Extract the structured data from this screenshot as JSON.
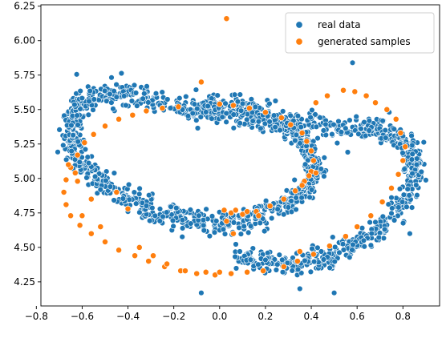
{
  "chart_data": {
    "type": "scatter",
    "title": "",
    "xlabel": "",
    "ylabel": "",
    "xlim": [
      -0.78,
      0.96
    ],
    "ylim": [
      4.075,
      6.26
    ],
    "x_ticks": [
      "−0.8",
      "−0.6",
      "−0.4",
      "−0.2",
      "0.0",
      "0.2",
      "0.4",
      "0.6",
      "0.8"
    ],
    "x_tick_values": [
      -0.8,
      -0.6,
      -0.4,
      -0.2,
      0.0,
      0.2,
      0.4,
      0.6,
      0.8
    ],
    "y_ticks": [
      "4.25",
      "4.50",
      "4.75",
      "5.00",
      "5.25",
      "5.50",
      "5.75",
      "6.00",
      "6.25"
    ],
    "y_tick_values": [
      4.25,
      4.5,
      4.75,
      5.0,
      5.25,
      5.5,
      5.75,
      6.0,
      6.25
    ],
    "grid": false,
    "legend_position": "top-right",
    "series": [
      {
        "name": "real data",
        "color": "#1f77b4",
        "shape": "double spiral",
        "approx_point_count": 2000,
        "x": [
          -0.12,
          -0.05,
          0.02,
          0.09,
          0.16,
          0.22,
          0.28,
          0.33,
          0.37,
          0.4,
          0.42,
          0.41,
          0.38,
          0.34,
          0.29,
          0.23,
          0.16,
          0.09,
          0.02,
          -0.05,
          -0.13,
          -0.21,
          -0.29,
          -0.37,
          -0.44,
          -0.5,
          -0.56,
          -0.6,
          -0.63,
          -0.65,
          -0.65,
          -0.64,
          -0.61,
          -0.57,
          -0.52,
          -0.45,
          -0.38,
          -0.3,
          -0.21,
          -0.12,
          -0.02,
          0.08,
          0.18,
          0.28,
          0.38,
          0.47,
          0.56,
          0.64,
          0.71,
          0.77,
          0.81,
          0.84,
          0.85,
          0.85,
          0.83,
          0.8,
          0.76,
          0.71,
          0.65,
          0.58,
          0.51,
          0.44,
          0.37,
          0.3,
          0.22,
          0.15,
          0.07
        ],
        "y": [
          5.5,
          5.53,
          5.53,
          5.52,
          5.49,
          5.45,
          5.4,
          5.33,
          5.26,
          5.18,
          5.1,
          5.02,
          4.94,
          4.87,
          4.81,
          4.76,
          4.72,
          4.69,
          4.68,
          4.68,
          4.7,
          4.73,
          4.77,
          4.82,
          4.88,
          4.95,
          5.03,
          5.11,
          5.2,
          5.29,
          5.38,
          5.46,
          5.53,
          5.58,
          5.61,
          5.62,
          5.61,
          5.58,
          5.54,
          5.5,
          5.47,
          5.44,
          5.42,
          5.4,
          5.39,
          5.38,
          5.37,
          5.36,
          5.34,
          5.31,
          5.27,
          5.21,
          5.13,
          5.04,
          4.94,
          4.84,
          4.74,
          4.65,
          4.57,
          4.5,
          4.45,
          4.41,
          4.39,
          4.38,
          4.39,
          4.4,
          4.43
        ]
      },
      {
        "name": "generated samples",
        "color": "#ff7f0e",
        "x": [
          0.03,
          -0.08,
          0.0,
          0.06,
          0.13,
          0.2,
          0.27,
          0.31,
          0.36,
          0.38,
          0.4,
          0.41,
          0.4,
          0.37,
          0.33,
          0.28,
          0.22,
          0.16,
          0.1,
          0.05,
          0.02,
          0.03,
          0.06,
          -0.18,
          -0.25,
          -0.32,
          -0.38,
          -0.44,
          -0.5,
          -0.55,
          -0.59,
          -0.62,
          -0.65,
          -0.67,
          -0.68,
          -0.67,
          -0.65,
          -0.61,
          -0.56,
          -0.5,
          -0.44,
          -0.37,
          -0.31,
          -0.24,
          -0.17,
          -0.1,
          -0.02,
          0.05,
          0.12,
          0.19,
          0.28,
          0.34,
          0.41,
          0.48,
          0.55,
          0.6,
          0.66,
          0.71,
          0.75,
          0.78,
          0.8,
          0.81,
          0.79,
          0.77,
          0.73,
          0.68,
          0.64,
          0.59,
          0.54,
          0.47,
          0.42,
          -0.66,
          -0.6,
          -0.56,
          -0.63,
          -0.52,
          -0.45,
          -0.4,
          -0.35,
          -0.29,
          -0.23,
          -0.15,
          -0.06,
          0.0,
          -0.62,
          0.35,
          0.39,
          0.42,
          0.36,
          0.17,
          0.12,
          0.07
        ],
        "y": [
          6.16,
          5.7,
          5.54,
          5.53,
          5.51,
          5.48,
          5.44,
          5.39,
          5.33,
          5.27,
          5.2,
          5.13,
          5.05,
          4.98,
          4.91,
          4.85,
          4.8,
          4.76,
          4.74,
          4.75,
          4.77,
          4.69,
          4.6,
          5.52,
          5.51,
          5.49,
          5.46,
          5.43,
          5.38,
          5.32,
          5.26,
          5.17,
          5.08,
          4.99,
          4.9,
          4.81,
          4.73,
          4.66,
          4.6,
          4.54,
          4.48,
          4.44,
          4.4,
          4.36,
          4.33,
          4.31,
          4.3,
          4.31,
          4.32,
          4.33,
          4.36,
          4.4,
          4.45,
          4.51,
          4.58,
          4.65,
          4.73,
          4.83,
          4.93,
          5.03,
          5.13,
          5.23,
          5.33,
          5.43,
          5.5,
          5.55,
          5.6,
          5.63,
          5.64,
          5.6,
          5.55,
          5.1,
          4.73,
          4.85,
          5.04,
          4.65,
          4.9,
          4.78,
          4.5,
          4.44,
          4.38,
          4.33,
          4.32,
          4.32,
          4.98,
          4.47,
          5.02,
          5.04,
          4.95,
          4.73,
          4.76,
          4.77
        ]
      }
    ]
  }
}
